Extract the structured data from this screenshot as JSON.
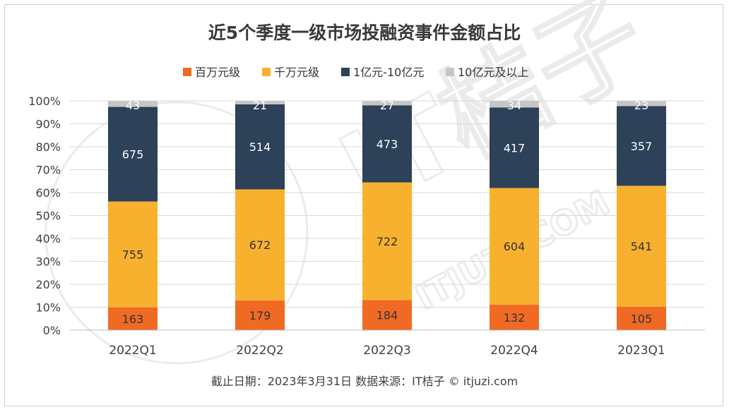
{
  "chart_data": {
    "type": "bar",
    "stacked": true,
    "normalized": true,
    "title": "近5个季度一级市场投融资事件金额占比",
    "categories": [
      "2022Q1",
      "2022Q2",
      "2022Q3",
      "2022Q4",
      "2023Q1"
    ],
    "series": [
      {
        "name": "百万元级",
        "color": "#f06a24",
        "label_color": "#333333",
        "values": [
          163,
          179,
          184,
          132,
          105
        ]
      },
      {
        "name": "千万元级",
        "color": "#f8b12e",
        "label_color": "#333333",
        "values": [
          755,
          672,
          722,
          604,
          541
        ]
      },
      {
        "name": "1亿元-10亿元",
        "color": "#2d4158",
        "label_color": "#ffffff",
        "values": [
          675,
          514,
          473,
          417,
          357
        ]
      },
      {
        "name": "10亿元及以上",
        "color": "#c6c6c6",
        "label_color": "#ffffff",
        "values": [
          43,
          21,
          27,
          34,
          23
        ]
      }
    ],
    "yticks": [
      "0%",
      "10%",
      "20%",
      "30%",
      "40%",
      "50%",
      "60%",
      "70%",
      "80%",
      "90%",
      "100%"
    ],
    "ylim": [
      0,
      1
    ],
    "grid": true,
    "legend": "top-center",
    "footnote": "截止日期：2023年3月31日    数据来源：IT桔子 © itjuzi.com"
  }
}
